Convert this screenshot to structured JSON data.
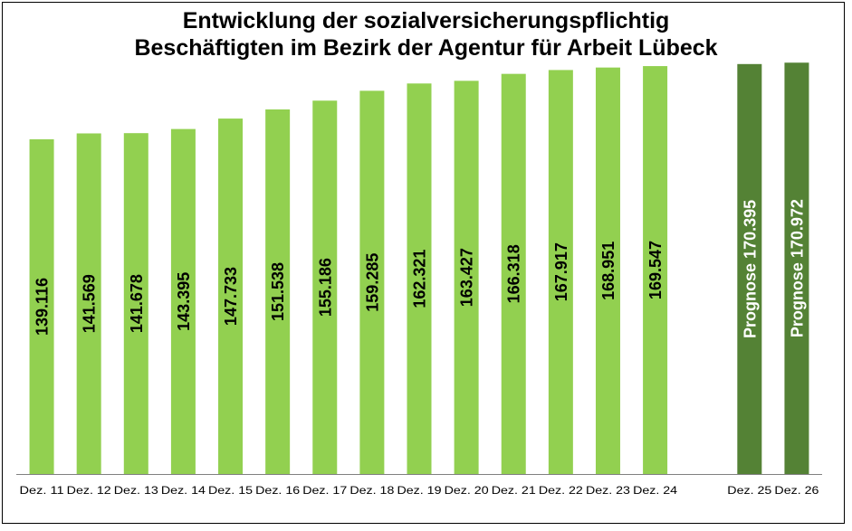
{
  "chart_data": {
    "type": "bar",
    "title_lines": [
      "Entwicklung der sozialversicherungspflichtig",
      "Beschäftigten im Bezirk der Agentur für Arbeit Lübeck"
    ],
    "xlabel": "",
    "ylabel": "",
    "ylim": [
      0,
      175000
    ],
    "grid": false,
    "legend": "none",
    "categories": [
      "Dez. 11",
      "Dez. 12",
      "Dez. 13",
      "Dez. 14",
      "Dez. 15",
      "Dez. 16",
      "Dez. 17",
      "Dez. 18",
      "Dez. 19",
      "Dez. 20",
      "Dez. 21",
      "Dez. 22",
      "Dez. 23",
      "Dez. 24",
      "",
      "Dez. 25",
      "Dez. 26"
    ],
    "values": [
      139116,
      141569,
      141678,
      143395,
      147733,
      151538,
      155186,
      159285,
      162321,
      163427,
      166318,
      167917,
      168951,
      169547,
      null,
      170395,
      170972
    ],
    "data_labels": [
      "139.116",
      "141.569",
      "141.678",
      "143.395",
      "147.733",
      "151.538",
      "155.186",
      "159.285",
      "162.321",
      "163.427",
      "166.318",
      "167.917",
      "168.951",
      "169.547",
      "",
      "Prognose 170.395",
      "Prognose 170.972"
    ],
    "forecast": [
      false,
      false,
      false,
      false,
      false,
      false,
      false,
      false,
      false,
      false,
      false,
      false,
      false,
      false,
      false,
      true,
      true
    ],
    "colors": {
      "actual": "#92D050",
      "forecast": "#548235",
      "actual_label": "#000000",
      "forecast_label": "#FFFFFF",
      "axis": "#808080"
    }
  }
}
